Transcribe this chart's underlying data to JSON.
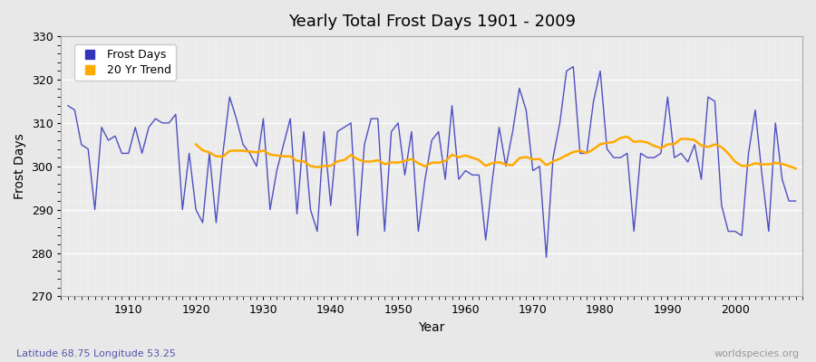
{
  "title": "Yearly Total Frost Days 1901 - 2009",
  "xlabel": "Year",
  "ylabel": "Frost Days",
  "subtitle": "Latitude 68.75 Longitude 53.25",
  "watermark": "worldspecies.org",
  "xlim": [
    1900,
    2010
  ],
  "ylim": [
    270,
    330
  ],
  "yticks": [
    270,
    280,
    290,
    300,
    310,
    320,
    330
  ],
  "line_color": "#3333bb",
  "trend_color": "#ffaa00",
  "bg_color": "#e8e8e8",
  "plot_bg": "#ebebeb",
  "legend_labels": [
    "Frost Days",
    "20 Yr Trend"
  ],
  "frost_days": [
    314,
    313,
    305,
    304,
    290,
    309,
    306,
    307,
    303,
    303,
    309,
    303,
    309,
    311,
    310,
    310,
    312,
    290,
    303,
    290,
    287,
    303,
    287,
    303,
    316,
    311,
    305,
    303,
    300,
    311,
    290,
    299,
    305,
    311,
    289,
    308,
    290,
    285,
    308,
    291,
    308,
    309,
    310,
    284,
    305,
    311,
    311,
    285,
    308,
    310,
    298,
    308,
    285,
    297,
    306,
    308,
    297,
    314,
    297,
    299,
    298,
    298,
    283,
    297,
    309,
    300,
    308,
    318,
    313,
    299,
    300,
    279,
    302,
    310,
    322,
    323,
    303,
    303,
    315,
    322,
    304,
    302,
    302,
    303,
    285,
    303,
    302,
    302,
    303,
    316,
    302,
    303,
    301,
    305,
    297,
    316,
    315,
    291,
    285,
    285,
    284,
    303,
    313,
    298,
    285,
    310,
    297,
    292,
    292
  ]
}
